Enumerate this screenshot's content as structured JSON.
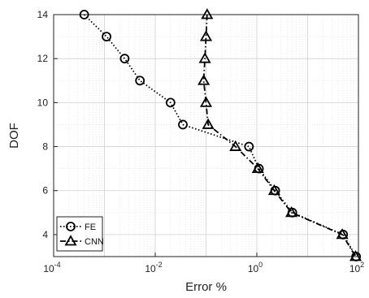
{
  "chart_data": {
    "type": "line",
    "xscale": "log",
    "xlim": [
      0.0001,
      100
    ],
    "ylim": [
      3,
      14
    ],
    "xlabel": "Error %",
    "ylabel": "DOF",
    "grid": true,
    "legend": "bottom-left",
    "x_ticks": [
      {
        "value": 0.0001,
        "base": "10",
        "exp": "-4"
      },
      {
        "value": 0.01,
        "base": "10",
        "exp": "-2"
      },
      {
        "value": 1,
        "base": "10",
        "exp": "0"
      },
      {
        "value": 100,
        "base": "10",
        "exp": "2"
      }
    ],
    "y_ticks": [
      {
        "value": 4,
        "label": "4"
      },
      {
        "value": 6,
        "label": "6"
      },
      {
        "value": 8,
        "label": "8"
      },
      {
        "value": 10,
        "label": "10"
      },
      {
        "value": 12,
        "label": "12"
      },
      {
        "value": 14,
        "label": "14"
      }
    ],
    "series": [
      {
        "name": "FE",
        "marker": "circle",
        "line_style": "dotted",
        "color": "#000000",
        "points": [
          {
            "x": 0.0004,
            "y": 14
          },
          {
            "x": 0.0011,
            "y": 13
          },
          {
            "x": 0.0025,
            "y": 12
          },
          {
            "x": 0.005,
            "y": 11
          },
          {
            "x": 0.02,
            "y": 10
          },
          {
            "x": 0.035,
            "y": 9
          },
          {
            "x": 0.7,
            "y": 8
          },
          {
            "x": 1.1,
            "y": 7
          },
          {
            "x": 2.3,
            "y": 6
          },
          {
            "x": 5.0,
            "y": 5
          },
          {
            "x": 50,
            "y": 4
          },
          {
            "x": 90,
            "y": 3
          }
        ]
      },
      {
        "name": "CNN",
        "marker": "triangle",
        "line_style": "dashdot",
        "color": "#000000",
        "points": [
          {
            "x": 0.105,
            "y": 14
          },
          {
            "x": 0.1,
            "y": 13
          },
          {
            "x": 0.095,
            "y": 12
          },
          {
            "x": 0.09,
            "y": 11
          },
          {
            "x": 0.1,
            "y": 10
          },
          {
            "x": 0.11,
            "y": 9
          },
          {
            "x": 0.38,
            "y": 8
          },
          {
            "x": 1.05,
            "y": 7
          },
          {
            "x": 2.2,
            "y": 6
          },
          {
            "x": 4.8,
            "y": 5
          },
          {
            "x": 48,
            "y": 4
          },
          {
            "x": 88,
            "y": 3
          }
        ]
      }
    ]
  }
}
